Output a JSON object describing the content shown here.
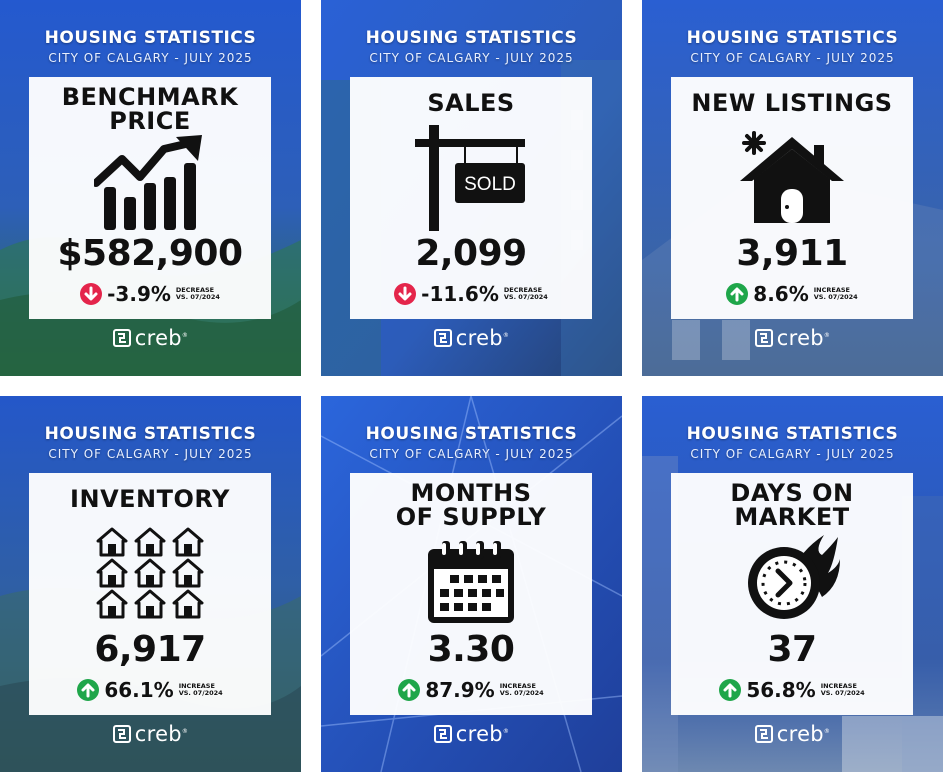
{
  "header": {
    "title": "HOUSING STATISTICS",
    "subtitle": "CITY OF CALGARY - JULY 2025"
  },
  "logo": {
    "text": "creb",
    "reg": "®",
    "icon": "creb-logo-icon"
  },
  "colors": {
    "increase": "#1fa64a",
    "decrease": "#e4254b",
    "bg_blue": "#1f4fc4"
  },
  "cards": [
    {
      "title": "BENCHMARK PRICE",
      "title_lines": [
        "BENCHMARK",
        "PRICE"
      ],
      "icon": "rising-bar-chart-icon",
      "value": "$582,900",
      "change": "-3.9%",
      "direction": "decrease",
      "note_line1": "DECREASE",
      "note_line2": "VS. 07/2024"
    },
    {
      "title": "SALES",
      "title_lines": [
        "SALES"
      ],
      "icon": "sold-sign-icon",
      "sign_text": "SOLD",
      "value": "2,099",
      "change": "-11.6%",
      "direction": "decrease",
      "note_line1": "DECREASE",
      "note_line2": "VS. 07/2024"
    },
    {
      "title": "NEW LISTINGS",
      "title_lines": [
        "NEW LISTINGS"
      ],
      "icon": "new-house-icon",
      "value": "3,911",
      "change": "8.6%",
      "direction": "increase",
      "note_line1": "INCREASE",
      "note_line2": "VS. 07/2024"
    },
    {
      "title": "INVENTORY",
      "title_lines": [
        "INVENTORY"
      ],
      "icon": "houses-grid-icon",
      "value": "6,917",
      "change": "66.1%",
      "direction": "increase",
      "note_line1": "INCREASE",
      "note_line2": "VS. 07/2024"
    },
    {
      "title": "MONTHS OF SUPPLY",
      "title_lines": [
        "MONTHS",
        "OF SUPPLY"
      ],
      "icon": "calendar-icon",
      "value": "3.30",
      "change": "87.9%",
      "direction": "increase",
      "note_line1": "INCREASE",
      "note_line2": "VS. 07/2024"
    },
    {
      "title": "DAYS ON MARKET",
      "title_lines": [
        "DAYS ON",
        "MARKET"
      ],
      "icon": "fast-clock-icon",
      "value": "37",
      "change": "56.8%",
      "direction": "increase",
      "note_line1": "INCREASE",
      "note_line2": "VS. 07/2024"
    }
  ]
}
